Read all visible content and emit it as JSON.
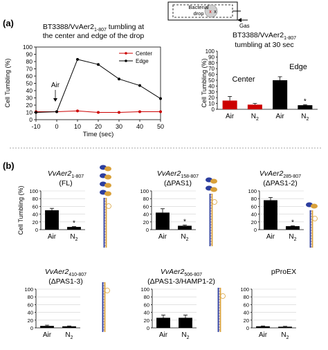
{
  "inset": {
    "drop_label_1": "Bacterial",
    "drop_label_2": "drop",
    "center_mark": "x",
    "edge_mark": "x",
    "gas_label": "Gas"
  },
  "panel_a": {
    "label": "(a)",
    "arrow_label": "Air",
    "colors": {
      "center": "#cc0000",
      "edge": "#000000"
    }
  },
  "panel_b": {
    "label": "(b)"
  },
  "chart_data": [
    {
      "type": "line",
      "id": "a-timecourse",
      "title_line1": "BT3388/VvAer2",
      "title_sub": "1-807",
      "title_line1_rest": " tumbling at",
      "title_line2": "the center and edge of the drop",
      "xlabel": "Time (sec)",
      "ylabel": "Cell Tumbling (%)",
      "xlim": [
        -10,
        50
      ],
      "ylim": [
        0,
        100
      ],
      "xticks": [
        -10,
        0,
        10,
        20,
        30,
        40,
        50
      ],
      "yticks": [
        0,
        10,
        20,
        30,
        40,
        50,
        60,
        70,
        80,
        90,
        100
      ],
      "legend_position": "top-right",
      "series": [
        {
          "name": "Center",
          "color": "#cc0000",
          "x": [
            -10,
            0,
            10,
            20,
            30,
            40,
            50
          ],
          "y": [
            11,
            11,
            12,
            10,
            10,
            11,
            11
          ]
        },
        {
          "name": "Edge",
          "color": "#000000",
          "x": [
            -10,
            0,
            10,
            20,
            30,
            40,
            50
          ],
          "y": [
            10,
            11,
            83,
            76,
            56,
            47,
            29
          ]
        }
      ]
    },
    {
      "type": "bar",
      "id": "a-30sec",
      "title_line1": "BT3388/VvAer2",
      "title_sub": "1-807",
      "title_line2": "tumbling at 30 sec",
      "ylabel": "Cell Tumbling (%)",
      "ylim": [
        0,
        100
      ],
      "yticks": [
        0,
        10,
        20,
        30,
        40,
        50,
        60,
        70,
        80,
        90,
        100
      ],
      "categories": [
        "Air",
        "N2",
        "Air",
        "N2"
      ],
      "groups": [
        "Center",
        "Edge"
      ],
      "values": [
        15,
        8,
        50,
        7
      ],
      "errors": [
        7,
        2,
        6,
        1
      ],
      "colors": [
        "#cc0000",
        "#cc0000",
        "#000000",
        "#000000"
      ],
      "significance": [
        "",
        "",
        "",
        "*"
      ]
    },
    {
      "type": "bar",
      "id": "b-fl",
      "title_line1": "VvAer2",
      "title_sub": "1-807",
      "title_line2": "(FL)",
      "ylabel": "Cell Tumbling (%)",
      "ylim": [
        0,
        100
      ],
      "yticks": [
        0,
        20,
        40,
        60,
        80,
        100
      ],
      "categories": [
        "Air",
        "N2"
      ],
      "values": [
        50,
        7
      ],
      "errors": [
        5,
        1
      ],
      "significance": [
        "",
        "*"
      ]
    },
    {
      "type": "bar",
      "id": "b-dpas1",
      "title_line1": "VvAer2",
      "title_sub": "158-807",
      "title_line2": "(ΔPAS1)",
      "ylim": [
        0,
        100
      ],
      "yticks": [
        0,
        20,
        40,
        60,
        80,
        100
      ],
      "categories": [
        "Air",
        "N2"
      ],
      "values": [
        44,
        10
      ],
      "errors": [
        10,
        2
      ],
      "significance": [
        "",
        "*"
      ]
    },
    {
      "type": "bar",
      "id": "b-dpas12",
      "title_line1": "VvAer2",
      "title_sub": "285-807",
      "title_line2": "(ΔPAS1-2)",
      "ylim": [
        0,
        100
      ],
      "yticks": [
        0,
        20,
        40,
        60,
        80,
        100
      ],
      "categories": [
        "Air",
        "N2"
      ],
      "values": [
        76,
        9
      ],
      "errors": [
        7,
        1
      ],
      "significance": [
        "",
        "*"
      ]
    },
    {
      "type": "bar",
      "id": "b-dpas13",
      "title_line1": "VvAer2",
      "title_sub": "410-807",
      "title_line2": "(ΔPAS1-3)",
      "ylim": [
        0,
        100
      ],
      "yticks": [
        0,
        20,
        40,
        60,
        80,
        100
      ],
      "categories": [
        "Air",
        "N2"
      ],
      "values": [
        5,
        4
      ],
      "errors": [
        2,
        1
      ],
      "significance": [
        "",
        ""
      ]
    },
    {
      "type": "bar",
      "id": "b-dpas13hamp",
      "title_line1": "VvAer2",
      "title_sub": "506-807",
      "title_line2": "(ΔPAS1-3/HAMP1-2)",
      "ylim": [
        0,
        100
      ],
      "yticks": [
        0,
        20,
        40,
        60,
        80,
        100
      ],
      "categories": [
        "Air",
        "N2"
      ],
      "values": [
        26,
        26
      ],
      "errors": [
        7,
        7
      ],
      "significance": [
        "",
        ""
      ]
    },
    {
      "type": "bar",
      "id": "b-pproex",
      "title_line1": "pProEX",
      "title_sub": "",
      "title_line2": "",
      "ylim": [
        0,
        100
      ],
      "yticks": [
        0,
        20,
        40,
        60,
        80,
        100
      ],
      "categories": [
        "Air",
        "N2"
      ],
      "values": [
        4,
        3
      ],
      "errors": [
        1,
        1
      ],
      "significance": [
        "",
        ""
      ]
    }
  ]
}
